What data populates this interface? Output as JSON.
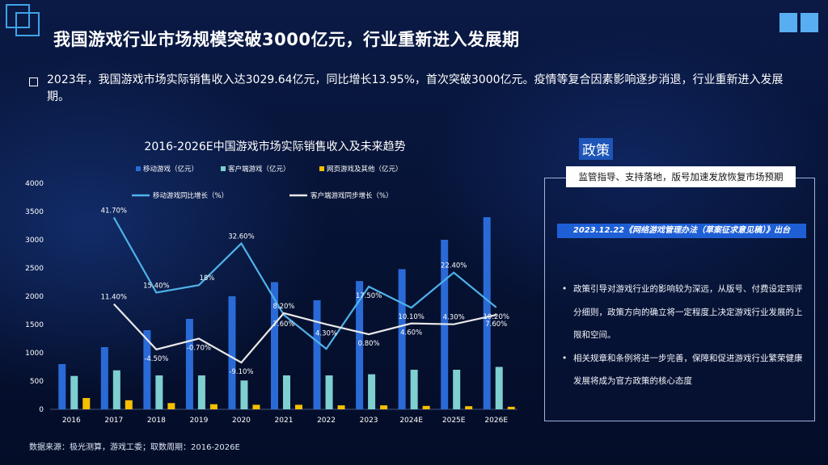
{
  "header": {
    "title": "我国游戏行业市场规模突破3000亿元，行业重新进入发展期",
    "intro": "2023年，我国游戏市场实际销售收入达3029.64亿元，同比增长13.95%，首次突破3000亿元。疫情等复合因素影响逐步消退，行业重新进入发展期。"
  },
  "chart_data": {
    "type": "bar",
    "title": "2016-2026E中国游戏市场实际销售收入及未来趋势",
    "categories": [
      "2016",
      "2017",
      "2018",
      "2019",
      "2020",
      "2021",
      "2022",
      "2023",
      "2024E",
      "2025E",
      "2026E"
    ],
    "ylim": [
      0,
      4000
    ],
    "yticks": [
      0,
      500,
      1000,
      1500,
      2000,
      2500,
      3000,
      3500,
      4000
    ],
    "series": [
      {
        "name": "移动游戏（亿元）",
        "type": "bar",
        "color": "#2a6ad6",
        "values": [
          800,
          1100,
          1400,
          1600,
          2000,
          2250,
          1930,
          2270,
          2480,
          3000,
          3400
        ]
      },
      {
        "name": "客户端游戏（亿元）",
        "type": "bar",
        "color": "#7ecfd0",
        "values": [
          590,
          690,
          600,
          600,
          510,
          600,
          600,
          620,
          700,
          700,
          750
        ]
      },
      {
        "name": "网页游戏及其他（亿元）",
        "type": "bar",
        "color": "#f5c000",
        "values": [
          200,
          160,
          110,
          90,
          80,
          80,
          70,
          70,
          60,
          55,
          45
        ]
      },
      {
        "name": "移动游戏同比增长（%）",
        "type": "line",
        "color": "#4fb3ea",
        "values": [
          null,
          41.7,
          15.4,
          18,
          32.6,
          7.6,
          -4.3,
          17.5,
          10.1,
          22.4,
          10.2
        ],
        "labels": [
          "",
          "41.70%",
          "15.40%",
          "18%",
          "32.60%",
          "7.60%",
          "",
          "17.50%",
          "10.10%",
          "22.40%",
          "10.20%"
        ]
      },
      {
        "name": "客户端游戏同步增长（%）",
        "type": "line",
        "color": "#e8e8e8",
        "values": [
          null,
          11.4,
          -4.5,
          -0.7,
          -9.1,
          8.2,
          4.3,
          0.8,
          4.6,
          4.3,
          7.6
        ],
        "labels": [
          "",
          "11.40%",
          "-4.50%",
          "-0.70%",
          "-9.10%",
          "8.20%",
          "4.30%",
          "0.80%",
          "4.60%",
          "4.30%",
          "7.60%"
        ]
      }
    ],
    "line_axis_range": [
      -15,
      50
    ],
    "legend_position": "top"
  },
  "source": "数据来源：极光测算，游戏工委；取数周期：2016-2026E",
  "policy": {
    "title": "政策",
    "guide": "监管指导、支持落地，版号加速发放恢复市场预期",
    "draft": "2023.12.22《网络游戏管理办法（草案征求意见稿）》出台",
    "bullet_char": "•",
    "points": [
      "政策引导对游戏行业的影响较为深远，从版号、付费设定到评分细则，政策方向的确立将一定程度上决定游戏行业发展的上限和空间。",
      "相关规章和条例将进一步完善，保障和促进游戏行业繁荣健康发展将成为官方政策的核心态度"
    ]
  }
}
